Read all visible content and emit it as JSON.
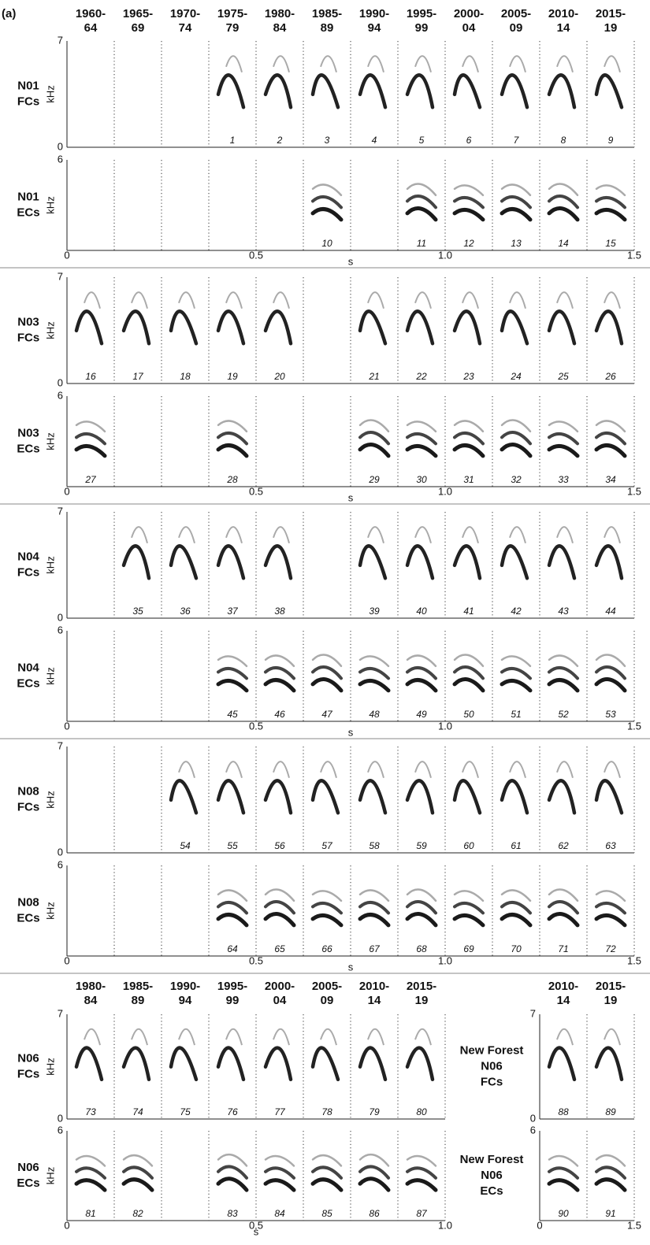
{
  "panel_label": "(a)",
  "headers": [
    [
      "1960-",
      "64"
    ],
    [
      "1965-",
      "69"
    ],
    [
      "1970-",
      "74"
    ],
    [
      "1975-",
      "79"
    ],
    [
      "1980-",
      "84"
    ],
    [
      "1985-",
      "89"
    ],
    [
      "1990-",
      "94"
    ],
    [
      "1995-",
      "99"
    ],
    [
      "2000-",
      "04"
    ],
    [
      "2005-",
      "09"
    ],
    [
      "2010-",
      "14"
    ],
    [
      "2015-",
      "19"
    ]
  ],
  "groups": [
    {
      "rows": [
        {
          "label": [
            "N01",
            "FCs"
          ],
          "unit": "kHz",
          "y_ticks": [
            "7",
            "0"
          ],
          "numbers": [
            null,
            null,
            null,
            1,
            2,
            3,
            4,
            5,
            6,
            7,
            8,
            9
          ]
        },
        {
          "label": [
            "N01",
            "ECs"
          ],
          "unit": "kHz",
          "y_ticks": [
            "6"
          ],
          "numbers": [
            null,
            null,
            null,
            null,
            null,
            10,
            null,
            11,
            12,
            13,
            14,
            15
          ]
        }
      ],
      "x_ticks": [
        "0",
        "0.5",
        "1.0",
        "1.5"
      ],
      "x_label": "s"
    },
    {
      "rows": [
        {
          "label": [
            "N03",
            "FCs"
          ],
          "unit": "kHz",
          "y_ticks": [
            "7",
            "0"
          ],
          "numbers": [
            16,
            17,
            18,
            19,
            20,
            null,
            21,
            22,
            23,
            24,
            25,
            26
          ]
        },
        {
          "label": [
            "N03",
            "ECs"
          ],
          "unit": "kHz",
          "y_ticks": [
            "6"
          ],
          "numbers": [
            27,
            null,
            null,
            28,
            null,
            null,
            29,
            30,
            31,
            32,
            33,
            34
          ]
        }
      ],
      "x_ticks": [
        "0",
        "0.5",
        "1.0",
        "1.5"
      ],
      "x_label": "s"
    },
    {
      "rows": [
        {
          "label": [
            "N04",
            "FCs"
          ],
          "unit": "kHz",
          "y_ticks": [
            "7",
            "0"
          ],
          "numbers": [
            null,
            35,
            36,
            37,
            38,
            null,
            39,
            40,
            41,
            42,
            43,
            44
          ]
        },
        {
          "label": [
            "N04",
            "ECs"
          ],
          "unit": "kHz",
          "y_ticks": [
            "6"
          ],
          "numbers": [
            null,
            null,
            null,
            45,
            46,
            47,
            48,
            49,
            50,
            51,
            52,
            53
          ]
        }
      ],
      "x_ticks": [
        "0",
        "0.5",
        "1.0",
        "1.5"
      ],
      "x_label": "s"
    },
    {
      "rows": [
        {
          "label": [
            "N08",
            "FCs"
          ],
          "unit": "kHz",
          "y_ticks": [
            "7",
            "0"
          ],
          "numbers": [
            null,
            null,
            54,
            55,
            56,
            57,
            58,
            59,
            60,
            61,
            62,
            63
          ]
        },
        {
          "label": [
            "N08",
            "ECs"
          ],
          "unit": "kHz",
          "y_ticks": [
            "6"
          ],
          "numbers": [
            null,
            null,
            null,
            64,
            65,
            66,
            67,
            68,
            69,
            70,
            71,
            72
          ]
        }
      ],
      "x_ticks": [
        "0",
        "0.5",
        "1.0",
        "1.5"
      ],
      "x_label": "s"
    }
  ],
  "n06": {
    "headers": [
      [
        "1980-",
        "84"
      ],
      [
        "1985-",
        "89"
      ],
      [
        "1990-",
        "94"
      ],
      [
        "1995-",
        "99"
      ],
      [
        "2000-",
        "04"
      ],
      [
        "2005-",
        "09"
      ],
      [
        "2010-",
        "14"
      ],
      [
        "2015-",
        "19"
      ]
    ],
    "rows": [
      {
        "label": [
          "N06",
          "FCs"
        ],
        "unit": "kHz",
        "y_ticks": [
          "7",
          "0"
        ],
        "numbers": [
          73,
          74,
          75,
          76,
          77,
          78,
          79,
          80
        ]
      },
      {
        "label": [
          "N06",
          "ECs"
        ],
        "unit": "kHz",
        "y_ticks": [
          "6"
        ],
        "numbers": [
          81,
          82,
          null,
          83,
          84,
          85,
          86,
          87
        ]
      }
    ],
    "x_ticks": [
      "0",
      "0.5",
      "1.0"
    ],
    "x_label": "s",
    "new_forest": {
      "headers": [
        [
          "2010-",
          "14"
        ],
        [
          "2015-",
          "19"
        ]
      ],
      "rows": [
        {
          "label": [
            "New Forest",
            "N06",
            "FCs"
          ],
          "y_ticks": [
            "7",
            "0"
          ],
          "numbers": [
            88,
            89
          ]
        },
        {
          "label": [
            "New Forest",
            "N06",
            "ECs"
          ],
          "y_ticks": [
            "6"
          ],
          "numbers": [
            90,
            91
          ]
        }
      ],
      "x_ticks": [
        "0",
        "1.5"
      ]
    }
  }
}
